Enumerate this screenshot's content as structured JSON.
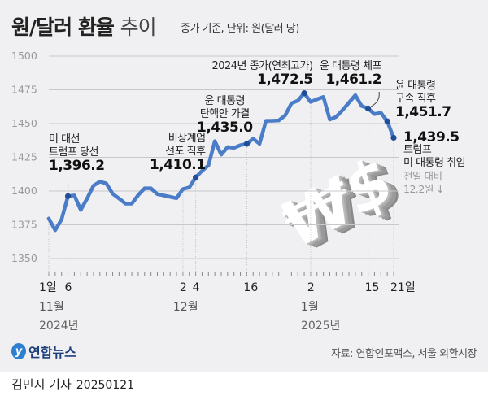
{
  "header": {
    "title_bold": "원/달러 환율",
    "title_light": "추이",
    "subtitle": "종가 기준, 단위: 원(달러 당)"
  },
  "colors": {
    "line": "#4a7cc7",
    "marker": "#1f4e99",
    "grid": "#c8c8cc",
    "background": "#f0f0f2"
  },
  "chart_data": {
    "type": "line",
    "title": "원/달러 환율 추이",
    "ylabel": "원(달러 당)",
    "ylim": [
      1350,
      1500
    ],
    "yticks": [
      1500,
      1475,
      1450,
      1425,
      1400,
      1375,
      1350
    ],
    "grid": true,
    "x": [
      0,
      1,
      2,
      3,
      4,
      5,
      6,
      7,
      8,
      9,
      10,
      11,
      12,
      13,
      14,
      15,
      16,
      17,
      18,
      19,
      20,
      21,
      22,
      23,
      24,
      25,
      26,
      27,
      28,
      29,
      30,
      31,
      32,
      33,
      34,
      35,
      36,
      37,
      38,
      39,
      40,
      41,
      42,
      43,
      44,
      45,
      46,
      47,
      48,
      49,
      50,
      51,
      52,
      53,
      54
    ],
    "values": [
      1379.7,
      1371,
      1379,
      1396.2,
      1396.8,
      1386,
      1394.5,
      1404,
      1407,
      1405.6,
      1398,
      1394.5,
      1390.7,
      1390.7,
      1397,
      1402,
      1402,
      1397.7,
      1396.7,
      1395.7,
      1394.7,
      1401.5,
      1402.7,
      1410.1,
      1415,
      1419,
      1437,
      1427,
      1432.6,
      1432,
      1434,
      1435.0,
      1438.8,
      1435,
      1452,
      1452.1,
      1452.3,
      1456,
      1465,
      1467,
      1472.5,
      1466,
      1468,
      1469.7,
      1453,
      1455,
      1460,
      1465.5,
      1471,
      1463,
      1461.2,
      1457,
      1458,
      1451.7,
      1439.5
    ],
    "xticks": [
      {
        "index": 0,
        "label": "1일"
      },
      {
        "index": 3,
        "label": "6"
      },
      {
        "index": 21,
        "label": "2"
      },
      {
        "index": 23,
        "label": "4"
      },
      {
        "index": 31,
        "label": "16"
      },
      {
        "index": 41,
        "label": "2"
      },
      {
        "index": 50,
        "label": "15"
      },
      {
        "index": 54,
        "label": "21일"
      }
    ],
    "months": [
      {
        "index": 0,
        "label": "11월"
      },
      {
        "index": 21,
        "label": "12월"
      },
      {
        "index": 41,
        "label": "1월"
      }
    ],
    "years": [
      {
        "index": 0,
        "label": "2024년"
      },
      {
        "index": 41,
        "label": "2025년"
      }
    ],
    "highlight_indices": [
      3,
      23,
      31,
      40,
      50,
      53,
      54
    ],
    "annotations": [
      {
        "label_lines": [
          "미 대선",
          "트럼프 당선"
        ],
        "value": "1,396.2"
      },
      {
        "label_lines": [
          "비상계엄",
          "선포 직후"
        ],
        "value": "1,410.1"
      },
      {
        "label_lines": [
          "윤 대통령",
          "탄핵안 가결"
        ],
        "value": "1,435.0"
      },
      {
        "label_lines": [
          "2024년 종가(연최고가)"
        ],
        "value": "1,472.5"
      },
      {
        "label_lines": [
          "윤 대통령 체포"
        ],
        "value": "1,461.2"
      },
      {
        "label_lines": [
          "윤 대통령",
          "구속 직후"
        ],
        "value": "1,451.7"
      },
      {
        "label_lines": [
          "트럼프",
          "미 대통령 취임"
        ],
        "value": "1,439.5",
        "note_lines": [
          "전일 대비",
          "12.2원 ↓"
        ]
      }
    ]
  },
  "illustration": {
    "glyphs": "₩$"
  },
  "footer": {
    "logo_text": "연합뉴스",
    "source": "자료: 연합인포맥스, 서울 외환시장",
    "reporter": "김민지 기자",
    "date": "20250121"
  }
}
